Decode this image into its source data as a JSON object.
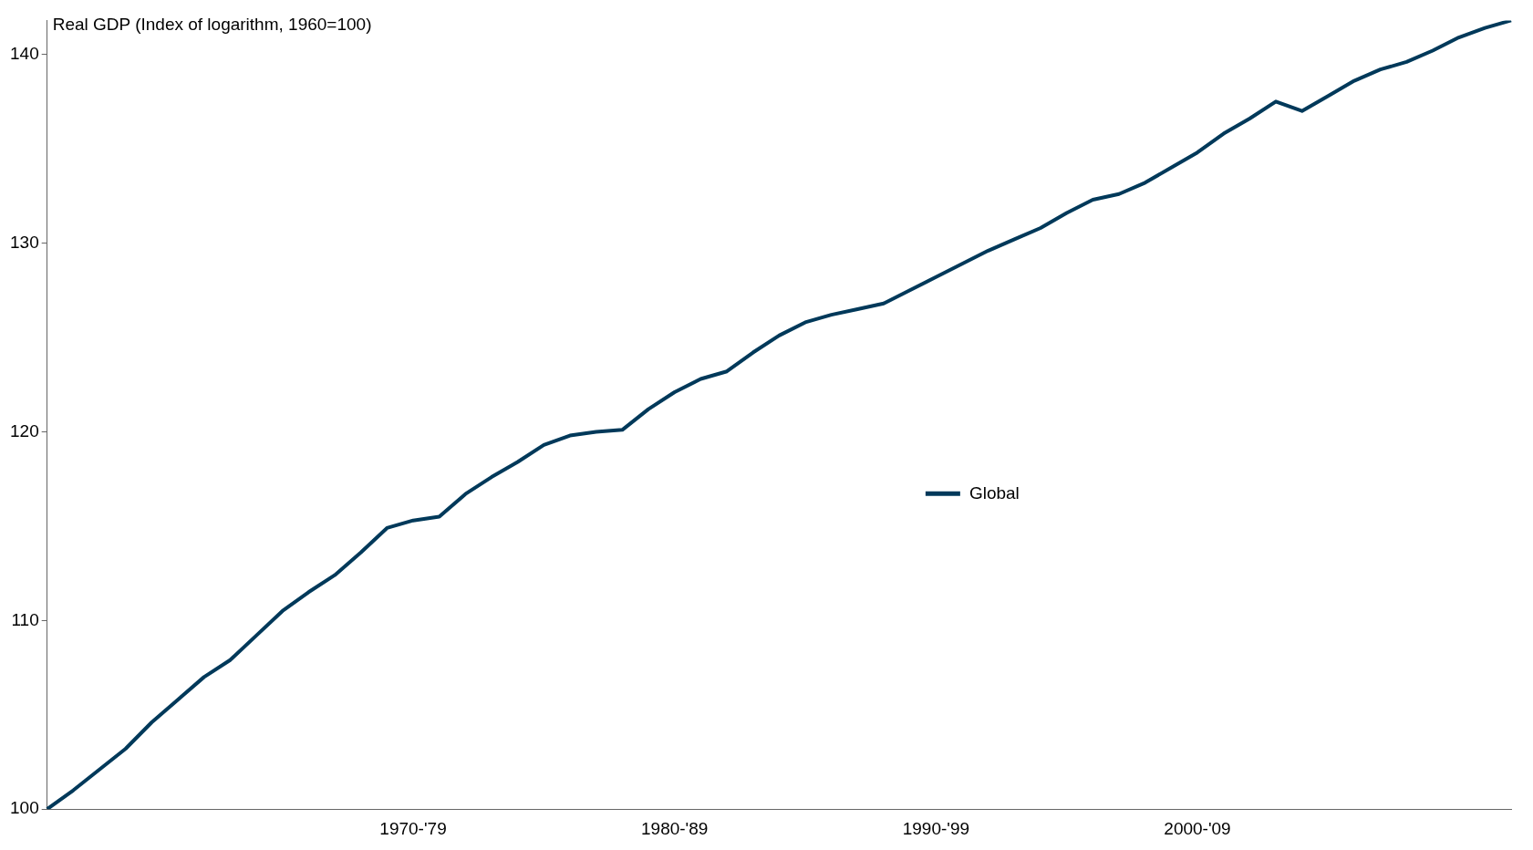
{
  "chart_data": {
    "type": "line",
    "ylabel": "Real GDP (Index of logarithm, 1960=100)",
    "categories": [
      null,
      null,
      null,
      null,
      null,
      null,
      null,
      null,
      null,
      null,
      null,
      null,
      null,
      null,
      "1970-'79",
      null,
      null,
      null,
      null,
      null,
      null,
      null,
      null,
      null,
      "1980-'89",
      null,
      null,
      null,
      null,
      null,
      null,
      null,
      null,
      null,
      "1990-'99",
      null,
      null,
      null,
      null,
      null,
      null,
      null,
      null,
      null,
      "2000-'09",
      null,
      null,
      null,
      null,
      null,
      null,
      null,
      null,
      null,
      null,
      null,
      null
    ],
    "series": [
      {
        "name": "Global",
        "color": "#00395a",
        "values": [
          100.0,
          101.0,
          102.1,
          103.2,
          104.6,
          105.8,
          107.0,
          107.9,
          109.2,
          110.5,
          111.5,
          112.4,
          113.6,
          114.9,
          115.3,
          115.5,
          116.7,
          117.6,
          118.4,
          119.3,
          119.8,
          120.0,
          120.1,
          121.2,
          122.1,
          122.8,
          123.2,
          124.2,
          125.1,
          125.8,
          126.2,
          126.5,
          126.8,
          127.5,
          128.2,
          128.9,
          129.6,
          130.2,
          130.8,
          131.6,
          132.3,
          132.6,
          133.2,
          134.0,
          134.8,
          135.8,
          136.6,
          137.5,
          137.0,
          137.8,
          138.6,
          139.2,
          139.6,
          140.2,
          140.9,
          141.4,
          141.8
        ]
      }
    ],
    "ylim": [
      100,
      141.8
    ],
    "yticks": [
      100,
      110,
      120,
      130,
      140
    ],
    "grid": false,
    "legend": "center",
    "line_style": "solid",
    "marker": "none"
  }
}
